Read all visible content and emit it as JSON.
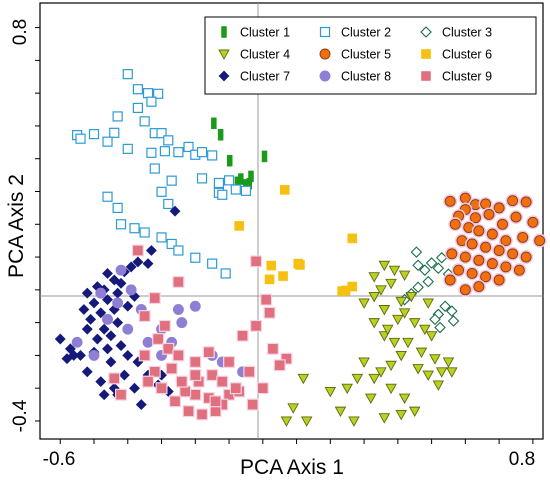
{
  "chart_data": {
    "type": "scatter",
    "xlabel": "PCA Axis 1",
    "ylabel": "PCA Axis 2",
    "xlim": [
      -0.66,
      0.83
    ],
    "ylim": [
      -0.455,
      0.875
    ],
    "x_tick_labels": [
      "-0.6",
      "0.8"
    ],
    "y_tick_labels": [
      "0.8",
      "-0.4"
    ],
    "grid": false,
    "reference_lines": {
      "x": 0,
      "y": 0
    },
    "legend_position": "top-right",
    "series": [
      {
        "name": "Cluster 1",
        "marker": "bar",
        "color": "#1a9a1a",
        "stroke": "#1a9a1a",
        "points": [
          [
            -0.145,
            0.508
          ],
          [
            -0.125,
            0.473
          ],
          [
            -0.098,
            0.394
          ],
          [
            -0.075,
            0.328
          ],
          [
            -0.05,
            0.32
          ],
          [
            -0.04,
            0.324
          ],
          [
            -0.035,
            0.346
          ],
          [
            -0.065,
            0.338
          ],
          [
            0.005,
            0.407
          ]
        ]
      },
      {
        "name": "Cluster 2",
        "marker": "square-open",
        "color": "#ffffff",
        "stroke": "#2d9ad6",
        "points": [
          [
            -0.4,
            0.658
          ],
          [
            -0.37,
            0.612
          ],
          [
            -0.34,
            0.6
          ],
          [
            -0.31,
            0.598
          ],
          [
            -0.33,
            0.574
          ],
          [
            -0.37,
            0.555
          ],
          [
            -0.43,
            0.529
          ],
          [
            -0.35,
            0.514
          ],
          [
            -0.44,
            0.479
          ],
          [
            -0.32,
            0.478
          ],
          [
            -0.3,
            0.478
          ],
          [
            -0.28,
            0.456
          ],
          [
            -0.5,
            0.475
          ],
          [
            -0.55,
            0.472
          ],
          [
            -0.54,
            0.461
          ],
          [
            -0.46,
            0.452
          ],
          [
            -0.4,
            0.43
          ],
          [
            -0.33,
            0.418
          ],
          [
            -0.29,
            0.423
          ],
          [
            -0.22,
            0.436
          ],
          [
            -0.25,
            0.42
          ],
          [
            -0.2,
            0.412
          ],
          [
            -0.18,
            0.42
          ],
          [
            -0.15,
            0.41
          ],
          [
            -0.32,
            0.37
          ],
          [
            -0.27,
            0.333
          ],
          [
            -0.18,
            0.34
          ],
          [
            -0.13,
            0.326
          ],
          [
            -0.1,
            0.334
          ],
          [
            -0.08,
            0.306
          ],
          [
            -0.05,
            0.302
          ],
          [
            -0.13,
            0.296
          ],
          [
            -0.12,
            0.29
          ],
          [
            -0.3,
            0.299
          ],
          [
            -0.28,
            0.262
          ],
          [
            -0.46,
            0.284
          ],
          [
            -0.43,
            0.25
          ],
          [
            -0.42,
            0.2
          ],
          [
            -0.38,
            0.188
          ],
          [
            -0.35,
            0.175
          ],
          [
            -0.3,
            0.16
          ],
          [
            -0.27,
            0.14
          ],
          [
            -0.25,
            0.12
          ],
          [
            -0.2,
            0.098
          ],
          [
            -0.15,
            0.08
          ],
          [
            -0.11,
            0.05
          ]
        ]
      },
      {
        "name": "Cluster 3",
        "marker": "diamond-open",
        "color": "#ffffff",
        "stroke": "#1a6b4a",
        "points": [
          [
            0.455,
            0.115
          ],
          [
            0.53,
            0.098
          ],
          [
            0.5,
            0.082
          ],
          [
            0.46,
            0.075
          ],
          [
            0.48,
            0.06
          ],
          [
            0.52,
            0.066
          ],
          [
            0.55,
            0.048
          ],
          [
            0.49,
            0.025
          ],
          [
            0.46,
            0.008
          ],
          [
            0.44,
            -0.012
          ],
          [
            0.42,
            -0.03
          ],
          [
            0.54,
            -0.05
          ],
          [
            0.56,
            -0.065
          ],
          [
            0.52,
            -0.075
          ],
          [
            0.51,
            -0.09
          ],
          [
            0.565,
            -0.095
          ],
          [
            0.525,
            -0.115
          ]
        ]
      },
      {
        "name": "Cluster 4",
        "marker": "triangle-down",
        "color": "#bcd020",
        "stroke": "#5a6a10",
        "points": [
          [
            0.33,
            0.04
          ],
          [
            0.36,
            0.075
          ],
          [
            0.39,
            0.06
          ],
          [
            0.42,
            0.045
          ],
          [
            0.38,
            0.02
          ],
          [
            0.35,
            0.0
          ],
          [
            0.33,
            -0.02
          ],
          [
            0.3,
            -0.04
          ],
          [
            0.36,
            -0.06
          ],
          [
            0.41,
            -0.035
          ],
          [
            0.44,
            -0.02
          ],
          [
            0.49,
            -0.04
          ],
          [
            0.42,
            -0.07
          ],
          [
            0.4,
            -0.09
          ],
          [
            0.45,
            -0.1
          ],
          [
            0.48,
            -0.12
          ],
          [
            0.5,
            -0.14
          ],
          [
            0.43,
            -0.16
          ],
          [
            0.39,
            -0.16
          ],
          [
            0.36,
            -0.14
          ],
          [
            0.47,
            -0.19
          ],
          [
            0.51,
            -0.21
          ],
          [
            0.55,
            -0.22
          ],
          [
            0.53,
            -0.25
          ],
          [
            0.49,
            -0.26
          ],
          [
            0.46,
            -0.24
          ],
          [
            0.41,
            -0.2
          ],
          [
            0.38,
            -0.23
          ],
          [
            0.35,
            -0.25
          ],
          [
            0.33,
            -0.27
          ],
          [
            0.3,
            -0.22
          ],
          [
            0.28,
            -0.27
          ],
          [
            0.38,
            -0.3
          ],
          [
            0.42,
            -0.33
          ],
          [
            0.45,
            -0.37
          ],
          [
            0.36,
            -0.39
          ],
          [
            0.23,
            -0.37
          ],
          [
            0.27,
            -0.4
          ],
          [
            0.2,
            -0.31
          ],
          [
            0.12,
            -0.27
          ],
          [
            0.09,
            -0.36
          ],
          [
            0.07,
            -0.4
          ],
          [
            0.13,
            -0.4
          ],
          [
            0.25,
            -0.3
          ],
          [
            0.32,
            -0.33
          ],
          [
            0.41,
            -0.38
          ],
          [
            0.52,
            -0.29
          ],
          [
            0.56,
            -0.25
          ],
          [
            0.37,
            -0.12
          ],
          [
            0.33,
            -0.1
          ]
        ]
      },
      {
        "name": "Cluster 5",
        "marker": "circle",
        "color": "#f07010",
        "stroke": "#8a3a10",
        "points": [
          [
            0.555,
            0.27
          ],
          [
            0.6,
            0.28
          ],
          [
            0.63,
            0.26
          ],
          [
            0.66,
            0.262
          ],
          [
            0.7,
            0.25
          ],
          [
            0.74,
            0.272
          ],
          [
            0.78,
            0.268
          ],
          [
            0.6,
            0.245
          ],
          [
            0.58,
            0.225
          ],
          [
            0.63,
            0.22
          ],
          [
            0.67,
            0.23
          ],
          [
            0.71,
            0.2
          ],
          [
            0.75,
            0.222
          ],
          [
            0.8,
            0.206
          ],
          [
            0.57,
            0.2
          ],
          [
            0.61,
            0.19
          ],
          [
            0.64,
            0.18
          ],
          [
            0.68,
            0.17
          ],
          [
            0.72,
            0.15
          ],
          [
            0.77,
            0.16
          ],
          [
            0.82,
            0.15
          ],
          [
            0.59,
            0.15
          ],
          [
            0.62,
            0.14
          ],
          [
            0.66,
            0.13
          ],
          [
            0.7,
            0.12
          ],
          [
            0.74,
            0.11
          ],
          [
            0.78,
            0.1
          ],
          [
            0.56,
            0.11
          ],
          [
            0.6,
            0.1
          ],
          [
            0.64,
            0.09
          ],
          [
            0.68,
            0.08
          ],
          [
            0.72,
            0.07
          ],
          [
            0.76,
            0.06
          ],
          [
            0.58,
            0.06
          ],
          [
            0.62,
            0.05
          ],
          [
            0.66,
            0.04
          ],
          [
            0.7,
            0.03
          ],
          [
            0.6,
            0.0
          ],
          [
            0.64,
            0.01
          ],
          [
            0.555,
            0.03
          ]
        ]
      },
      {
        "name": "Cluster 6",
        "marker": "square",
        "color": "#f5c010",
        "stroke": "#f5c010",
        "points": [
          [
            0.065,
            0.305
          ],
          [
            -0.07,
            0.195
          ],
          [
            0.265,
            0.157
          ],
          [
            0.025,
            0.074
          ],
          [
            0.105,
            0.08
          ],
          [
            0.11,
            0.076
          ],
          [
            0.06,
            0.042
          ],
          [
            0.02,
            0.032
          ],
          [
            0.265,
            0.01
          ],
          [
            0.245,
            -0.002
          ],
          [
            0.235,
            -0.004
          ]
        ]
      },
      {
        "name": "Cluster 7",
        "marker": "diamond",
        "color": "#14197a",
        "stroke": "#14197a",
        "points": [
          [
            -0.26,
            0.24
          ],
          [
            -0.33,
            0.12
          ],
          [
            -0.37,
            0.085
          ],
          [
            -0.34,
            0.08
          ],
          [
            -0.39,
            0.07
          ],
          [
            -0.46,
            0.05
          ],
          [
            -0.41,
            0.055
          ],
          [
            -0.42,
            0.02
          ],
          [
            -0.44,
            0.03
          ],
          [
            -0.49,
            0.01
          ],
          [
            -0.52,
            -0.01
          ],
          [
            -0.47,
            0.0
          ],
          [
            -0.43,
            -0.01
          ],
          [
            -0.38,
            -0.02
          ],
          [
            -0.5,
            -0.04
          ],
          [
            -0.53,
            -0.06
          ],
          [
            -0.48,
            -0.07
          ],
          [
            -0.46,
            -0.03
          ],
          [
            -0.44,
            -0.06
          ],
          [
            -0.4,
            -0.05
          ],
          [
            -0.51,
            -0.09
          ],
          [
            -0.47,
            -0.12
          ],
          [
            -0.43,
            -0.1
          ],
          [
            -0.45,
            -0.14
          ],
          [
            -0.49,
            -0.15
          ],
          [
            -0.52,
            -0.12
          ],
          [
            -0.55,
            -0.16
          ],
          [
            -0.6,
            -0.15
          ],
          [
            -0.57,
            -0.18
          ],
          [
            -0.54,
            -0.2
          ],
          [
            -0.5,
            -0.19
          ],
          [
            -0.46,
            -0.18
          ],
          [
            -0.42,
            -0.17
          ],
          [
            -0.4,
            -0.2
          ],
          [
            -0.45,
            -0.22
          ],
          [
            -0.52,
            -0.25
          ],
          [
            -0.48,
            -0.28
          ],
          [
            -0.44,
            -0.3
          ],
          [
            -0.41,
            -0.26
          ],
          [
            -0.37,
            -0.22
          ],
          [
            -0.34,
            -0.26
          ],
          [
            -0.31,
            -0.29
          ],
          [
            -0.38,
            -0.3
          ],
          [
            -0.47,
            -0.32
          ],
          [
            -0.43,
            -0.32
          ],
          [
            -0.56,
            -0.2
          ],
          [
            -0.58,
            -0.21
          ],
          [
            -0.28,
            -0.31
          ],
          [
            -0.3,
            -0.26
          ],
          [
            -0.36,
            -0.35
          ]
        ]
      },
      {
        "name": "Cluster 8",
        "marker": "circle",
        "color": "#8f7fd4",
        "stroke": "#8f7fd4",
        "points": [
          [
            -0.42,
            0.06
          ],
          [
            -0.39,
            0.0
          ],
          [
            -0.48,
            -0.01
          ],
          [
            -0.43,
            -0.04
          ],
          [
            -0.36,
            -0.06
          ],
          [
            -0.4,
            -0.12
          ],
          [
            -0.46,
            -0.09
          ],
          [
            -0.55,
            -0.16
          ],
          [
            -0.5,
            -0.2
          ],
          [
            -0.3,
            -0.12
          ],
          [
            -0.27,
            -0.16
          ],
          [
            -0.3,
            -0.2
          ],
          [
            -0.34,
            -0.16
          ],
          [
            -0.24,
            -0.1
          ],
          [
            -0.2,
            -0.05
          ],
          [
            -0.15,
            -0.2
          ],
          [
            -0.12,
            -0.22
          ],
          [
            -0.06,
            -0.25
          ],
          [
            -0.25,
            -0.06
          ]
        ]
      },
      {
        "name": "Cluster 9",
        "marker": "square",
        "color": "#e0707e",
        "stroke": "#e0707e",
        "points": [
          [
            -0.37,
            0.12
          ],
          [
            -0.02,
            0.087
          ],
          [
            -0.25,
            0.024
          ],
          [
            -0.32,
            -0.025
          ],
          [
            -0.35,
            -0.08
          ],
          [
            -0.29,
            -0.11
          ],
          [
            -0.31,
            -0.15
          ],
          [
            -0.28,
            -0.18
          ],
          [
            -0.35,
            -0.2
          ],
          [
            -0.25,
            -0.2
          ],
          [
            -0.27,
            -0.24
          ],
          [
            -0.2,
            -0.22
          ],
          [
            -0.19,
            -0.28
          ],
          [
            -0.2,
            -0.32
          ],
          [
            -0.23,
            -0.31
          ],
          [
            -0.15,
            -0.26
          ],
          [
            -0.12,
            -0.28
          ],
          [
            -0.1,
            -0.32
          ],
          [
            -0.07,
            -0.31
          ],
          [
            -0.12,
            -0.35
          ],
          [
            -0.16,
            -0.33
          ],
          [
            -0.03,
            -0.35
          ],
          [
            0.0,
            -0.3
          ],
          [
            -0.14,
            -0.37
          ],
          [
            -0.18,
            -0.38
          ],
          [
            -0.22,
            -0.37
          ],
          [
            -0.32,
            -0.25
          ],
          [
            -0.44,
            -0.27
          ],
          [
            -0.42,
            -0.32
          ],
          [
            -0.3,
            -0.3
          ],
          [
            -0.24,
            -0.28
          ],
          [
            0.02,
            -0.07
          ],
          [
            -0.02,
            -0.11
          ],
          [
            0.03,
            -0.18
          ],
          [
            0.07,
            -0.21
          ],
          [
            -0.04,
            -0.25
          ],
          [
            -0.08,
            -0.3
          ],
          [
            -0.34,
            -0.28
          ],
          [
            0.05,
            -0.23
          ],
          [
            -0.16,
            -0.19
          ],
          [
            0.01,
            -0.03
          ],
          [
            -0.06,
            -0.14
          ],
          [
            -0.1,
            -0.22
          ],
          [
            -0.26,
            -0.34
          ],
          [
            -0.2,
            -0.26
          ],
          [
            -0.14,
            -0.34
          ]
        ]
      }
    ]
  }
}
